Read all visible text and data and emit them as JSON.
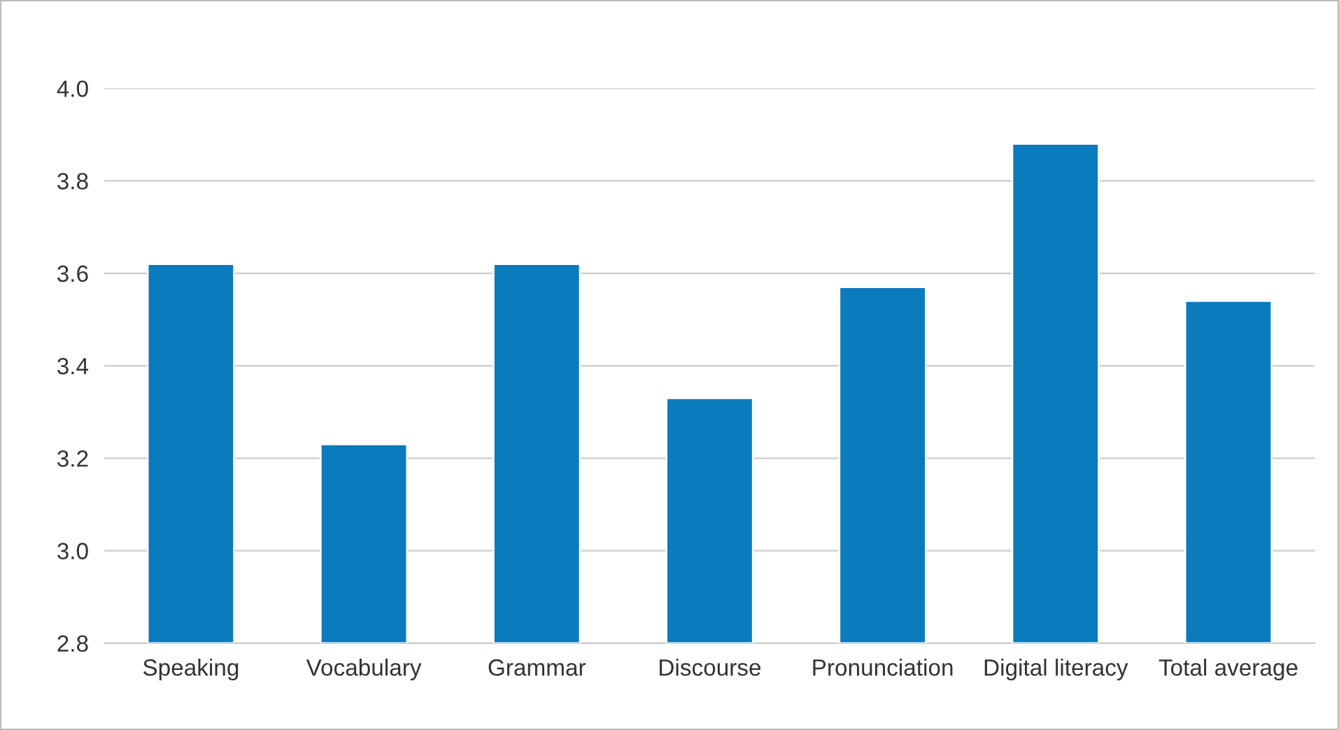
{
  "chart_data": {
    "type": "bar",
    "categories": [
      "Speaking",
      "Vocabulary",
      "Grammar",
      "Discourse",
      "Pronunciation",
      "Digital literacy",
      "Total average"
    ],
    "values": [
      3.62,
      3.23,
      3.62,
      3.33,
      3.57,
      3.88,
      3.54
    ],
    "color": "#0a7bbd",
    "ylim": [
      2.8,
      4.0
    ],
    "yticks": [
      {
        "value": 2.8,
        "label": "2.8"
      },
      {
        "value": 3.0,
        "label": "3.0"
      },
      {
        "value": 3.2,
        "label": "3.2"
      },
      {
        "value": 3.4,
        "label": "3.4"
      },
      {
        "value": 3.6,
        "label": "3.6"
      },
      {
        "value": 3.8,
        "label": "3.8"
      },
      {
        "value": 4.0,
        "label": "4.0"
      }
    ],
    "grid": "y",
    "legend": false
  }
}
